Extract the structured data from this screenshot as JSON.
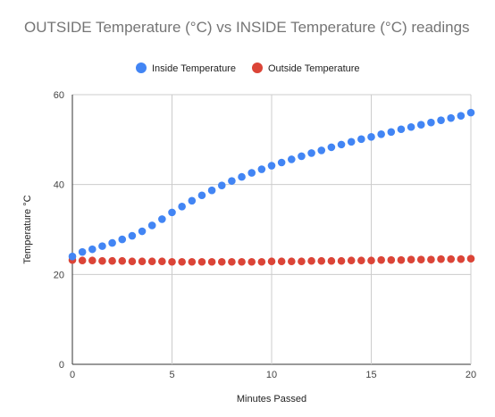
{
  "chart_data": {
    "type": "scatter",
    "title": "OUTSIDE Temperature (°C) vs INSIDE Temperature (°C) readings",
    "xlabel": "Minutes Passed",
    "ylabel": "Temperature °C",
    "xlim": [
      0,
      20
    ],
    "ylim": [
      0,
      60
    ],
    "xticks": [
      0,
      5,
      10,
      15,
      20
    ],
    "yticks": [
      0,
      20,
      40,
      60
    ],
    "grid": true,
    "legend_position": "top-center",
    "series": [
      {
        "name": "Inside Temperature",
        "color": "#4285f4",
        "x": [
          0,
          0.5,
          1,
          1.5,
          2,
          2.5,
          3,
          3.5,
          4,
          4.5,
          5,
          5.5,
          6,
          6.5,
          7,
          7.5,
          8,
          8.5,
          9,
          9.5,
          10,
          10.5,
          11,
          11.5,
          12,
          12.5,
          13,
          13.5,
          14,
          14.5,
          15,
          15.5,
          16,
          16.5,
          17,
          17.5,
          18,
          18.5,
          19,
          19.5,
          20
        ],
        "y": [
          24,
          25,
          25.6,
          26.3,
          27,
          27.8,
          28.6,
          29.6,
          30.9,
          32.3,
          33.8,
          35.1,
          36.4,
          37.6,
          38.7,
          39.8,
          40.8,
          41.7,
          42.6,
          43.4,
          44.2,
          44.9,
          45.6,
          46.3,
          47,
          47.6,
          48.3,
          48.9,
          49.5,
          50.1,
          50.6,
          51.2,
          51.7,
          52.3,
          52.8,
          53.3,
          53.8,
          54.3,
          54.8,
          55.3,
          56
        ]
      },
      {
        "name": "Outside Temperature",
        "color": "#db4437",
        "x": [
          0,
          0.5,
          1,
          1.5,
          2,
          2.5,
          3,
          3.5,
          4,
          4.5,
          5,
          5.5,
          6,
          6.5,
          7,
          7.5,
          8,
          8.5,
          9,
          9.5,
          10,
          10.5,
          11,
          11.5,
          12,
          12.5,
          13,
          13.5,
          14,
          14.5,
          15,
          15.5,
          16,
          16.5,
          17,
          17.5,
          18,
          18.5,
          19,
          19.5,
          20
        ],
        "y": [
          23.2,
          23.1,
          23.1,
          23,
          23,
          23,
          22.9,
          22.9,
          22.9,
          22.9,
          22.8,
          22.8,
          22.8,
          22.8,
          22.8,
          22.8,
          22.8,
          22.8,
          22.8,
          22.8,
          22.9,
          22.9,
          22.9,
          22.9,
          23,
          23,
          23,
          23,
          23.1,
          23.1,
          23.1,
          23.2,
          23.2,
          23.2,
          23.3,
          23.3,
          23.3,
          23.4,
          23.4,
          23.4,
          23.5
        ]
      }
    ]
  }
}
